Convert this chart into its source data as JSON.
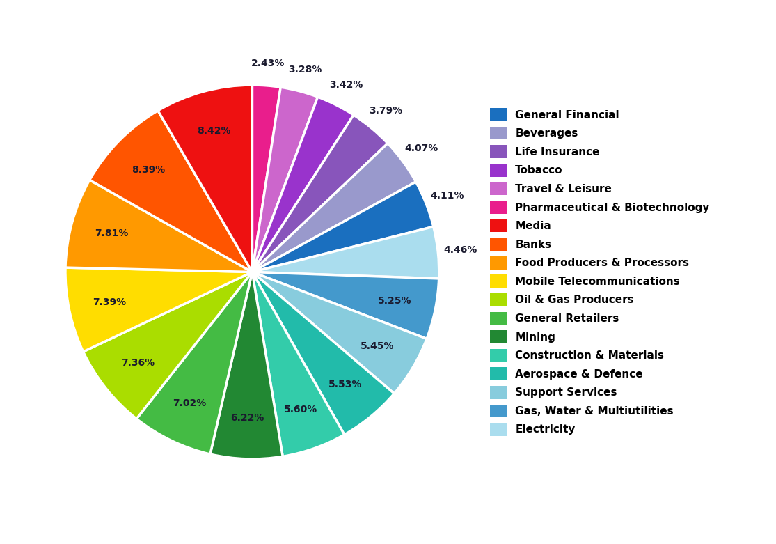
{
  "sectors": [
    {
      "label": "Pharmaceutical & Biotechnology",
      "value": 2.43,
      "color": "#E91E8C"
    },
    {
      "label": "Travel & Leisure",
      "value": 3.28,
      "color": "#CC66CC"
    },
    {
      "label": "Tobacco",
      "value": 3.42,
      "color": "#9933CC"
    },
    {
      "label": "Life Insurance",
      "value": 3.79,
      "color": "#8855BB"
    },
    {
      "label": "Beverages",
      "value": 4.07,
      "color": "#9999CC"
    },
    {
      "label": "General Financial",
      "value": 4.11,
      "color": "#1A6FBF"
    },
    {
      "label": "Electricity",
      "value": 4.46,
      "color": "#AADDEE"
    },
    {
      "label": "Gas, Water & Multiutilities",
      "value": 5.25,
      "color": "#4499CC"
    },
    {
      "label": "Support Services",
      "value": 5.45,
      "color": "#88CCDD"
    },
    {
      "label": "Aerospace & Defence",
      "value": 5.53,
      "color": "#22BBAA"
    },
    {
      "label": "Construction & Materials",
      "value": 5.6,
      "color": "#33CCAA"
    },
    {
      "label": "Mining",
      "value": 6.22,
      "color": "#228833"
    },
    {
      "label": "General Retailers",
      "value": 7.02,
      "color": "#44BB44"
    },
    {
      "label": "Oil & Gas Producers",
      "value": 7.36,
      "color": "#AADD00"
    },
    {
      "label": "Mobile Telecommunications",
      "value": 7.39,
      "color": "#FFDD00"
    },
    {
      "label": "Food Producers & Processors",
      "value": 7.81,
      "color": "#FF9900"
    },
    {
      "label": "Banks",
      "value": 8.39,
      "color": "#FF5500"
    },
    {
      "label": "Media",
      "value": 8.42,
      "color": "#EE1111"
    }
  ],
  "legend_items": [
    {
      "label": "General Financial",
      "color": "#1A6FBF"
    },
    {
      "label": "Beverages",
      "color": "#9999CC"
    },
    {
      "label": "Life Insurance",
      "color": "#8855BB"
    },
    {
      "label": "Tobacco",
      "color": "#9933CC"
    },
    {
      "label": "Travel & Leisure",
      "color": "#CC66CC"
    },
    {
      "label": "Pharmaceutical & Biotechnology",
      "color": "#E91E8C"
    },
    {
      "label": "Media",
      "color": "#EE1111"
    },
    {
      "label": "Banks",
      "color": "#FF5500"
    },
    {
      "label": "Food Producers & Processors",
      "color": "#FF9900"
    },
    {
      "label": "Mobile Telecommunications",
      "color": "#FFDD00"
    },
    {
      "label": "Oil & Gas Producers",
      "color": "#AADD00"
    },
    {
      "label": "General Retailers",
      "color": "#44BB44"
    },
    {
      "label": "Mining",
      "color": "#228833"
    },
    {
      "label": "Construction & Materials",
      "color": "#33CCAA"
    },
    {
      "label": "Aerospace & Defence",
      "color": "#22BBAA"
    },
    {
      "label": "Support Services",
      "color": "#88CCDD"
    },
    {
      "label": "Gas, Water & Multiutilities",
      "color": "#4499CC"
    },
    {
      "label": "Electricity",
      "color": "#AADDEE"
    }
  ],
  "label_color": "#1a1a2e",
  "bg_color": "#ffffff",
  "pct_distance": 0.78,
  "outside_label_distance": 1.12,
  "small_threshold": 4.5
}
